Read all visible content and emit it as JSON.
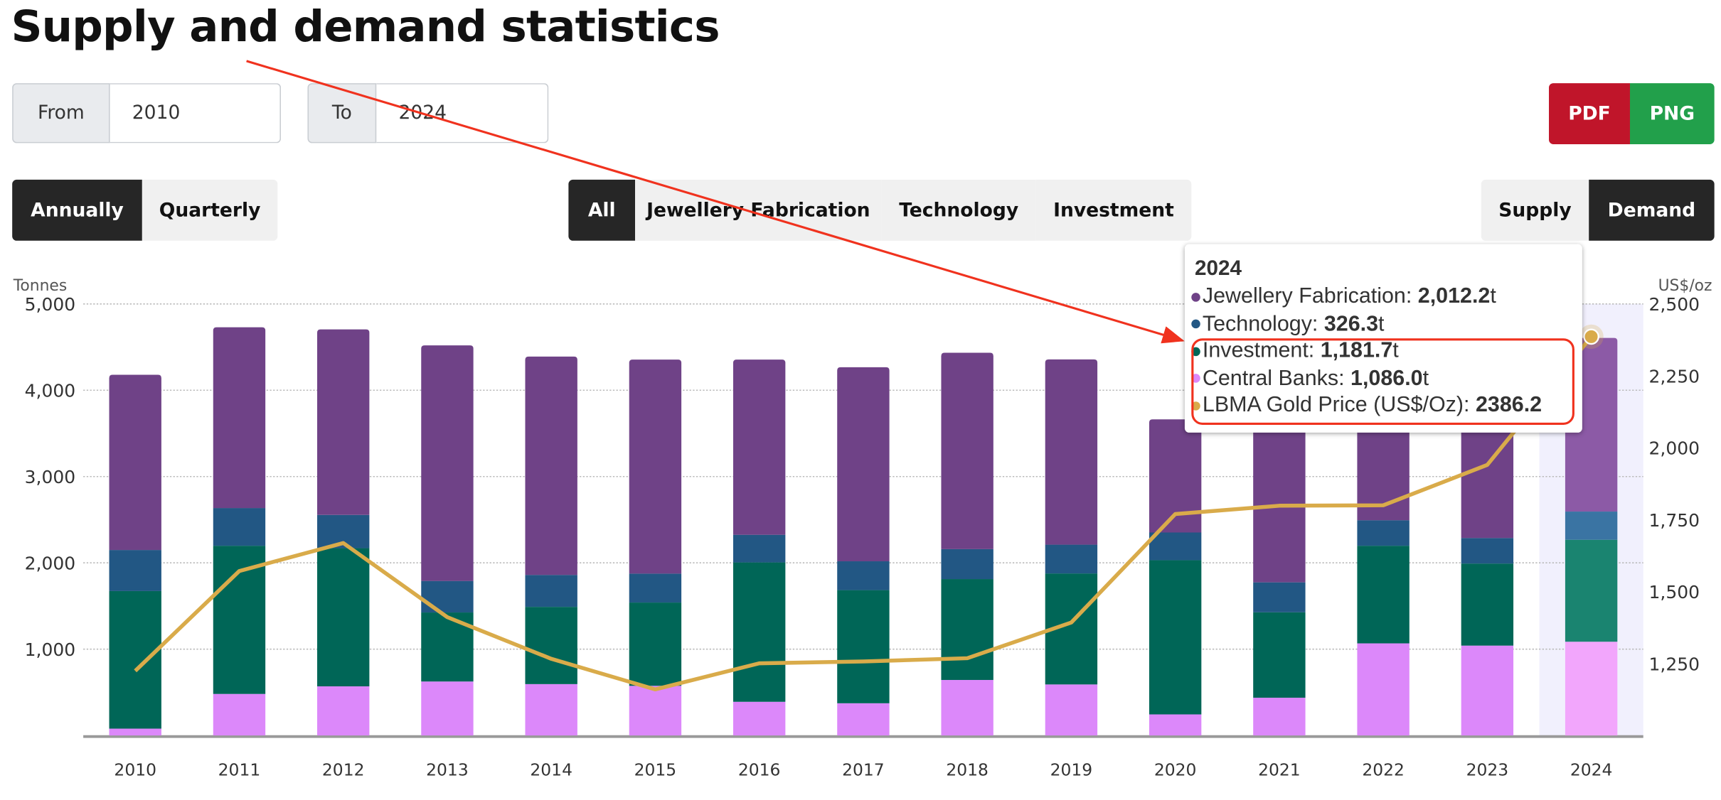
{
  "page": {
    "title": "Supply and demand statistics"
  },
  "filters": {
    "from_label": "From",
    "from_value": "2010",
    "to_label": "To",
    "to_value": "2024"
  },
  "export": {
    "pdf": "PDF",
    "png": "PNG",
    "pdf_color": "#c0152a",
    "png_color": "#22a04b"
  },
  "period_tabs": [
    {
      "label": "Annually",
      "active": true
    },
    {
      "label": "Quarterly",
      "active": false
    }
  ],
  "sector_tabs": [
    {
      "label": "All",
      "active": true
    },
    {
      "label": "Jewellery Fabrication",
      "active": false
    },
    {
      "label": "Technology",
      "active": false
    },
    {
      "label": "Investment",
      "active": false
    }
  ],
  "side_tabs": [
    {
      "label": "Supply",
      "active": false
    },
    {
      "label": "Demand",
      "active": true
    }
  ],
  "tooltip": {
    "year": "2024",
    "rows": [
      {
        "label": "Jewellery Fabrication: ",
        "value": "2,012.2",
        "unit": "t",
        "color": "#6f4287"
      },
      {
        "label": "Technology: ",
        "value": "326.3",
        "unit": "t",
        "color": "#225784"
      },
      {
        "label": "Investment: ",
        "value": "1,181.7",
        "unit": "t",
        "color": "#006657"
      },
      {
        "label": "Central Banks: ",
        "value": "1,086.0",
        "unit": "t",
        "color": "#dc88fa"
      },
      {
        "label": "LBMA Gold Price (US$/Oz): ",
        "value": "2386.2",
        "unit": "",
        "color": "#d9ab4a"
      }
    ]
  },
  "chart_data": {
    "type": "bar",
    "stacked": true,
    "title": "",
    "ylabel": "Tonnes",
    "y2label": "US$/oz",
    "ylim": [
      0,
      5000
    ],
    "y2lim": [
      1000,
      2500
    ],
    "yticks": [
      "1,000",
      "2,000",
      "3,000",
      "4,000",
      "5,000"
    ],
    "y2ticks": [
      "1,250",
      "1,500",
      "1,750",
      "2,000",
      "2,250",
      "2,500"
    ],
    "categories": [
      "2010",
      "2011",
      "2012",
      "2013",
      "2014",
      "2015",
      "2016",
      "2017",
      "2018",
      "2019",
      "2020",
      "2021",
      "2022",
      "2023",
      "2024"
    ],
    "highlighted": "2024",
    "series": [
      {
        "name": "Central Banks",
        "color": "#dc88fa",
        "values": [
          79,
          481,
          569,
          625,
          595,
          575,
          390,
          373,
          643,
          591,
          244,
          437,
          1067,
          1041,
          1086.0
        ]
      },
      {
        "name": "Investment",
        "color": "#006657",
        "values": [
          1594,
          1717,
          1601,
          800,
          895,
          965,
          1615,
          1311,
          1169,
          1286,
          1787,
          990,
          1131,
          951,
          1181.7
        ]
      },
      {
        "name": "Technology",
        "color": "#225784",
        "values": [
          476,
          437,
          385,
          365,
          370,
          335,
          320,
          334,
          347,
          334,
          321,
          347,
          296,
          296,
          326.3
        ]
      },
      {
        "name": "Jewellery Fabrication",
        "color": "#6f4287",
        "values": [
          2030,
          2095,
          2150,
          2730,
          2530,
          2480,
          2030,
          2249,
          2275,
          2146,
          1311,
          2236,
          2190,
          2190,
          2012.2
        ]
      }
    ],
    "line": {
      "name": "LBMA Gold Price (US$/Oz)",
      "color": "#d9ab4a",
      "axis": "right",
      "values": [
        1224.5,
        1571.5,
        1668.9,
        1411.2,
        1266.4,
        1160.1,
        1250.8,
        1257.1,
        1268.5,
        1392.6,
        1769.6,
        1798.6,
        1800.1,
        1940.5,
        2386.2
      ]
    }
  }
}
